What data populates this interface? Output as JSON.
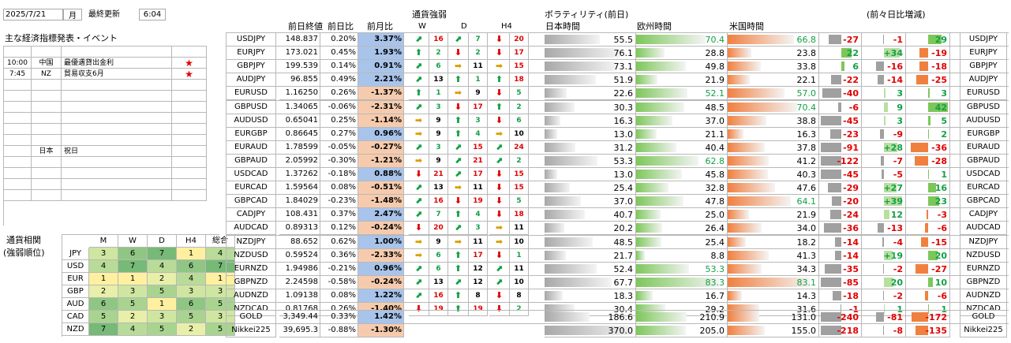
{
  "header": {
    "date": "2025/7/21",
    "weekday": "月",
    "update_label": "最終更新",
    "update_time": "6:04"
  },
  "events": {
    "title": "主な経済指標発表・イベント",
    "rows": [
      {
        "time": "10:00",
        "country": "中国",
        "event": "最優遇貸出金利",
        "star": "★"
      },
      {
        "time": "7:45",
        "country": "NZ",
        "event": "貿易収支6月",
        "star": "★"
      },
      {
        "time": "",
        "country": "",
        "event": "",
        "star": ""
      },
      {
        "time": "",
        "country": "",
        "event": "",
        "star": ""
      },
      {
        "time": "",
        "country": "",
        "event": "",
        "star": ""
      },
      {
        "time": "",
        "country": "",
        "event": "",
        "star": ""
      },
      {
        "time": "",
        "country": "",
        "event": "",
        "star": ""
      },
      {
        "time": "",
        "country": "",
        "event": "",
        "star": ""
      },
      {
        "time": "",
        "country": "日本",
        "event": "祝日",
        "star": ""
      },
      {
        "time": "",
        "country": "",
        "event": "",
        "star": ""
      },
      {
        "time": "",
        "country": "",
        "event": "",
        "star": ""
      },
      {
        "time": "",
        "country": "",
        "event": "",
        "star": ""
      },
      {
        "time": "",
        "country": "",
        "event": "",
        "star": ""
      }
    ]
  },
  "correlation": {
    "title_line1": "通貨相関",
    "title_line2": "(強弱順位)",
    "headers": [
      "M",
      "W",
      "D",
      "H4",
      "総合"
    ],
    "rows": [
      {
        "ccy": "JPY",
        "v": [
          "3",
          "6",
          "7",
          "1",
          "4"
        ]
      },
      {
        "ccy": "USD",
        "v": [
          "4",
          "7",
          "4",
          "6",
          "7"
        ]
      },
      {
        "ccy": "EUR",
        "v": [
          "1",
          "1",
          "2",
          "4",
          "1"
        ]
      },
      {
        "ccy": "GBP",
        "v": [
          "2",
          "3",
          "5",
          "3",
          "3"
        ]
      },
      {
        "ccy": "AUD",
        "v": [
          "6",
          "5",
          "1",
          "6",
          "5"
        ]
      },
      {
        "ccy": "CAD",
        "v": [
          "5",
          "2",
          "3",
          "5",
          "3"
        ]
      },
      {
        "ccy": "NZD",
        "v": [
          "7",
          "4",
          "5",
          "2",
          "5"
        ]
      }
    ]
  },
  "headers": {
    "prev_close": "前日終値",
    "day_change": "前日比",
    "month_change": "前月比",
    "strength": "通貨強弱",
    "w": "W",
    "d": "D",
    "h4": "H4",
    "volatility": "ボラティリティ(前日)",
    "tokyo": "日本時間",
    "europe": "欧州時間",
    "us": "米国時間",
    "diff": "(前々日比増減)"
  },
  "pairs": [
    {
      "sym": "USDJPY",
      "close": "148.837",
      "day": "0.20%",
      "month": "3.37%",
      "w": "⬈",
      "wn": "16",
      "d": "⬈",
      "dn": "7",
      "h4": "⬇",
      "hn": "20",
      "tk": "55.5",
      "eu": "70.4",
      "us": "66.8",
      "d1": "-27",
      "d2": "-1",
      "d3": "29"
    },
    {
      "sym": "EURJPY",
      "close": "173.021",
      "day": "0.45%",
      "month": "1.93%",
      "w": "⬆",
      "wn": "2",
      "d": "⬇",
      "dn": "2",
      "h4": "⬇",
      "hn": "17",
      "tk": "76.1",
      "eu": "28.8",
      "us": "23.8",
      "d1": "22",
      "d2": "+34",
      "d3": "-19"
    },
    {
      "sym": "GBPJPY",
      "close": "199.539",
      "day": "0.14%",
      "month": "0.91%",
      "w": "⬈",
      "wn": "6",
      "d": "➡",
      "dn": "11",
      "h4": "➡",
      "hn": "15",
      "tk": "73.1",
      "eu": "49.8",
      "us": "33.8",
      "d1": "6",
      "d2": "-16",
      "d3": "-18"
    },
    {
      "sym": "AUDJPY",
      "close": "96.855",
      "day": "0.49%",
      "month": "2.21%",
      "w": "⬈",
      "wn": "13",
      "d": "⬆",
      "dn": "1",
      "h4": "⬆",
      "hn": "18",
      "tk": "51.9",
      "eu": "21.9",
      "us": "22.1",
      "d1": "-22",
      "d2": "-14",
      "d3": "-25"
    },
    {
      "sym": "EURUSD",
      "close": "1.16250",
      "day": "0.26%",
      "month": "-1.37%",
      "w": "⬆",
      "wn": "1",
      "d": "➡",
      "dn": "9",
      "h4": "⬇",
      "hn": "5",
      "tk": "22.6",
      "eu": "52.1",
      "us": "57.0",
      "d1": "-40",
      "d2": "3",
      "d3": "3"
    },
    {
      "sym": "GBPUSD",
      "close": "1.34065",
      "day": "-0.06%",
      "month": "-2.31%",
      "w": "⬈",
      "wn": "3",
      "d": "⬇",
      "dn": "17",
      "h4": "⬆",
      "hn": "2",
      "tk": "30.3",
      "eu": "48.5",
      "us": "70.4",
      "d1": "-6",
      "d2": "9",
      "d3": "42"
    },
    {
      "sym": "AUDUSD",
      "close": "0.65041",
      "day": "0.25%",
      "month": "-1.14%",
      "w": "➡",
      "wn": "9",
      "d": "⬆",
      "dn": "3",
      "h4": "⬇",
      "hn": "6",
      "tk": "16.3",
      "eu": "37.0",
      "us": "38.8",
      "d1": "-45",
      "d2": "3",
      "d3": "5"
    },
    {
      "sym": "EURGBP",
      "close": "0.86645",
      "day": "0.27%",
      "month": "0.96%",
      "w": "➡",
      "wn": "9",
      "d": "⬆",
      "dn": "4",
      "h4": "➡",
      "hn": "10",
      "tk": "13.0",
      "eu": "21.1",
      "us": "16.3",
      "d1": "-23",
      "d2": "-9",
      "d3": "2"
    },
    {
      "sym": "EURAUD",
      "close": "1.78599",
      "day": "-0.05%",
      "month": "-0.27%",
      "w": "⬈",
      "wn": "3",
      "d": "⬈",
      "dn": "15",
      "h4": "⬈",
      "hn": "24",
      "tk": "31.2",
      "eu": "40.4",
      "us": "37.8",
      "d1": "-91",
      "d2": "+28",
      "d3": "-36"
    },
    {
      "sym": "GBPAUD",
      "close": "2.05992",
      "day": "-0.30%",
      "month": "-1.21%",
      "w": "➡",
      "wn": "9",
      "d": "⬈",
      "dn": "21",
      "h4": "⬈",
      "hn": "2",
      "tk": "53.3",
      "eu": "62.8",
      "us": "41.2",
      "d1": "-122",
      "d2": "-7",
      "d3": "-28"
    },
    {
      "sym": "USDCAD",
      "close": "1.37262",
      "day": "-0.18%",
      "month": "0.88%",
      "w": "⬇",
      "wn": "21",
      "d": "⬈",
      "dn": "17",
      "h4": "⬇",
      "hn": "15",
      "tk": "13.0",
      "eu": "45.8",
      "us": "40.3",
      "d1": "-45",
      "d2": "-5",
      "d3": "1"
    },
    {
      "sym": "EURCAD",
      "close": "1.59564",
      "day": "0.08%",
      "month": "-0.51%",
      "w": "⬈",
      "wn": "13",
      "d": "➡",
      "dn": "11",
      "h4": "⬇",
      "hn": "15",
      "tk": "25.4",
      "eu": "32.8",
      "us": "47.6",
      "d1": "-29",
      "d2": "+27",
      "d3": "16"
    },
    {
      "sym": "GBPCAD",
      "close": "1.84029",
      "day": "-0.23%",
      "month": "-1.48%",
      "w": "⬈",
      "wn": "16",
      "d": "⬇",
      "dn": "19",
      "h4": "⬇",
      "hn": "5",
      "tk": "37.0",
      "eu": "47.8",
      "us": "64.1",
      "d1": "-20",
      "d2": "+39",
      "d3": "23"
    },
    {
      "sym": "CADJPY",
      "close": "108.431",
      "day": "0.37%",
      "month": "2.47%",
      "w": "⬈",
      "wn": "7",
      "d": "⬆",
      "dn": "4",
      "h4": "⬇",
      "hn": "18",
      "tk": "40.7",
      "eu": "25.0",
      "us": "21.9",
      "d1": "-24",
      "d2": "12",
      "d3": "-3"
    },
    {
      "sym": "AUDCAD",
      "close": "0.89313",
      "day": "0.12%",
      "month": "-0.24%",
      "w": "⬇",
      "wn": "20",
      "d": "⬈",
      "dn": "3",
      "h4": "➡",
      "hn": "11",
      "tk": "20.2",
      "eu": "26.4",
      "us": "34.0",
      "d1": "-36",
      "d2": "-13",
      "d3": "-6"
    },
    {
      "sym": "NZDJPY",
      "close": "88.652",
      "day": "0.62%",
      "month": "1.00%",
      "w": "➡",
      "wn": "9",
      "d": "➡",
      "dn": "11",
      "h4": "➡",
      "hn": "10",
      "tk": "48.5",
      "eu": "25.4",
      "us": "18.2",
      "d1": "-14",
      "d2": "-4",
      "d3": "-15"
    },
    {
      "sym": "NZDUSD",
      "close": "0.59524",
      "day": "0.36%",
      "month": "-2.33%",
      "w": "➡",
      "wn": "6",
      "d": "⬆",
      "dn": "17",
      "h4": "⬇",
      "hn": "1",
      "tk": "21.7",
      "eu": "8.8",
      "us": "41.3",
      "d1": "-14",
      "d2": "+19",
      "d3": "20"
    },
    {
      "sym": "EURNZD",
      "close": "1.94986",
      "day": "-0.21%",
      "month": "0.96%",
      "w": "⬈",
      "wn": "6",
      "d": "⬆",
      "dn": "12",
      "h4": "⬈",
      "hn": "11",
      "tk": "52.4",
      "eu": "53.3",
      "us": "34.3",
      "d1": "-35",
      "d2": "-2",
      "d3": "-27"
    },
    {
      "sym": "GBPNZD",
      "close": "2.24598",
      "day": "-0.58%",
      "month": "-0.24%",
      "w": "⬈",
      "wn": "13",
      "d": "⬈",
      "dn": "12",
      "h4": "⬈",
      "hn": "10",
      "tk": "67.7",
      "eu": "83.3",
      "us": "83.1",
      "d1": "-85",
      "d2": "20",
      "d3": "10"
    },
    {
      "sym": "AUDNZD",
      "close": "1.09138",
      "day": "0.08%",
      "month": "1.22%",
      "w": "⬈",
      "wn": "16",
      "d": "⬆",
      "dn": "8",
      "h4": "⬇",
      "hn": "8",
      "tk": "18.3",
      "eu": "16.7",
      "us": "14.3",
      "d1": "-18",
      "d2": "-2",
      "d3": "-6"
    },
    {
      "sym": "NZDCAD",
      "close": "0.81768",
      "day": "0.26%",
      "month": "-1.40%",
      "w": "⬇",
      "wn": "19",
      "d": "⬆",
      "dn": "19",
      "h4": "⬇",
      "hn": "2",
      "tk": "30.4",
      "eu": "29.2",
      "us": "31.6",
      "d1": "-1",
      "d2": "1",
      "d3": "1"
    }
  ],
  "extra": [
    {
      "sym": "GOLD",
      "close": "3,349.44",
      "day": "0.33%",
      "month": "1.42%",
      "tk": "186.6",
      "eu": "210.9",
      "us": "131.0",
      "d1": "-240",
      "d2": "-81",
      "d3": "-172"
    },
    {
      "sym": "Nikkei225",
      "close": "39,695.3",
      "day": "-0.88%",
      "month": "-1.30%",
      "tk": "370.0",
      "eu": "205.0",
      "us": "155.0",
      "d1": "-218",
      "d2": "-8",
      "d3": "-135"
    }
  ],
  "colors": {
    "green": "#12a045",
    "red": "#e00000",
    "blue_cell": "#a9c4eb",
    "orange_cell": "#f6cbad",
    "tokyo_bar": "#a8a8a8",
    "europe_bar": "#7dc75a",
    "us_bar": "#f08040"
  }
}
